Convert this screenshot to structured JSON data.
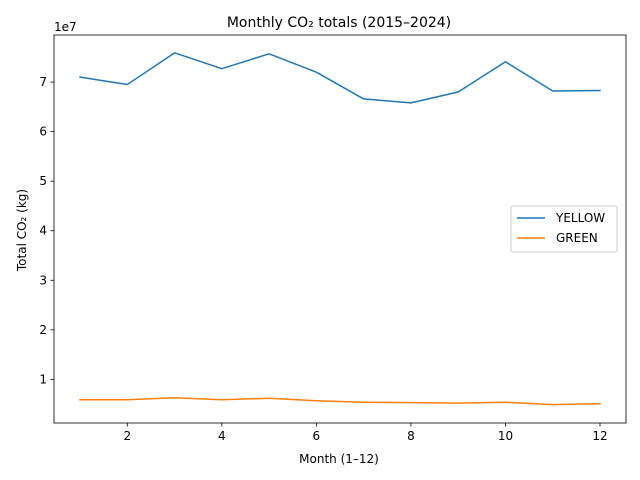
{
  "chart_data": {
    "type": "line",
    "title": "Monthly CO₂ totals (2015–2024)",
    "xlabel": "Month (1–12)",
    "ylabel": "Total CO₂ (kg)",
    "y_offset_label": "1e7",
    "x": [
      1,
      2,
      3,
      4,
      5,
      6,
      7,
      8,
      9,
      10,
      11,
      12
    ],
    "xlim": [
      0.45,
      12.55
    ],
    "ylim": [
      1200000,
      79500000
    ],
    "x_ticks": [
      2,
      4,
      6,
      8,
      10,
      12
    ],
    "x_tick_labels": [
      "2",
      "4",
      "6",
      "8",
      "10",
      "12"
    ],
    "y_ticks": [
      10000000,
      20000000,
      30000000,
      40000000,
      50000000,
      60000000,
      70000000
    ],
    "y_tick_labels": [
      "1",
      "2",
      "3",
      "4",
      "5",
      "6",
      "7"
    ],
    "grid": false,
    "legend_position": "center-right",
    "series": [
      {
        "name": "YELLOW",
        "color": "#1f77b4",
        "values": [
          71000000,
          69500000,
          75900000,
          72700000,
          75700000,
          72000000,
          66600000,
          65800000,
          68000000,
          74100000,
          68200000,
          68300000
        ]
      },
      {
        "name": "GREEN",
        "color": "#ff7f0e",
        "values": [
          5900000,
          5900000,
          6300000,
          5900000,
          6200000,
          5700000,
          5400000,
          5300000,
          5200000,
          5400000,
          4900000,
          5100000
        ]
      }
    ]
  }
}
